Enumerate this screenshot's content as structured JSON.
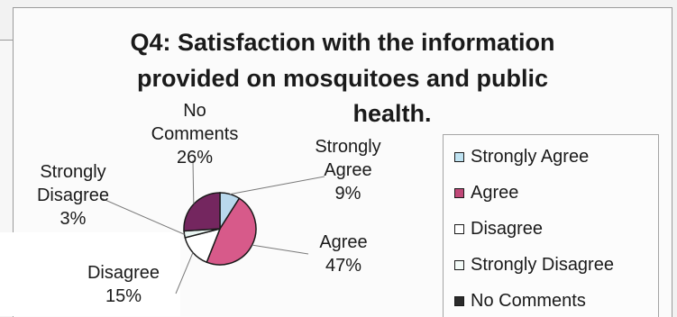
{
  "chart_data": {
    "type": "pie",
    "title_lines": [
      "Q4: Satisfaction with the information",
      "provided on mosquitoes and public",
      "health."
    ],
    "slices": [
      {
        "name": "Strongly Agree",
        "label_lines": [
          "Strongly",
          "Agree",
          "9%"
        ],
        "value": 9,
        "color": "#b9d8ec"
      },
      {
        "name": "Agree",
        "label_lines": [
          "Agree",
          "47%"
        ],
        "value": 47,
        "color": "#d75a8a"
      },
      {
        "name": "Disagree",
        "label_lines": [
          "Disagree",
          "15%"
        ],
        "value": 15,
        "color": "#ffffff"
      },
      {
        "name": "Strongly Disagree",
        "label_lines": [
          "Strongly",
          "Disagree",
          "3%"
        ],
        "value": 3,
        "color": "#e8f4f1"
      },
      {
        "name": "No Comments",
        "label_lines": [
          "No",
          "Comments",
          "26%"
        ],
        "value": 26,
        "color": "#74265f"
      }
    ],
    "legend": {
      "placement": "right",
      "entries": [
        "Strongly Agree",
        "Agree",
        "Disagree",
        "Strongly Disagree",
        "No Comments"
      ],
      "swatch_colors": [
        "#bfe3f2",
        "#c04878",
        "#ffffff",
        "#f4fbf8",
        "#2b2b2b"
      ]
    }
  }
}
